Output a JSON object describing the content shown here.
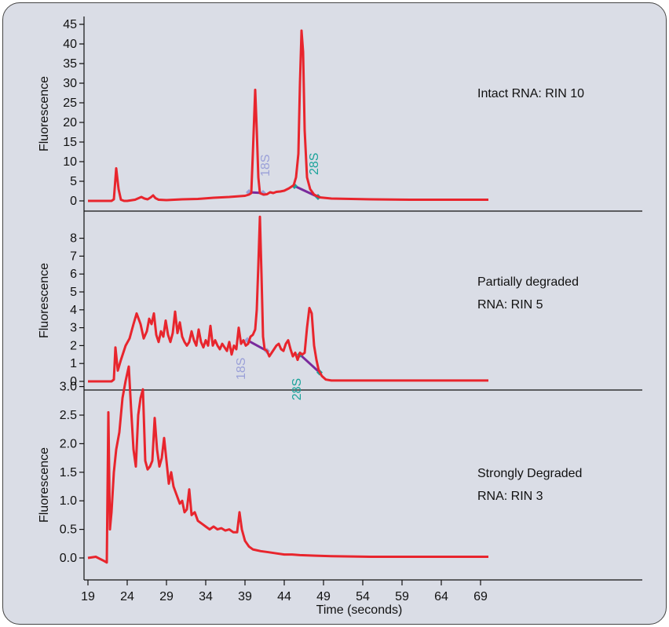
{
  "chart_data": [
    {
      "type": "line",
      "panel": "top",
      "annotation": [
        "Intact RNA: RIN 10"
      ],
      "ylabel": "Fluorescence",
      "xlim": [
        19,
        70
      ],
      "ylim": [
        0,
        45
      ],
      "yticks": [
        "0",
        "5",
        "10",
        "15",
        "20",
        "25",
        "30",
        "35",
        "40",
        "45"
      ],
      "series": [
        {
          "color": "#e8252d",
          "x": [
            19,
            20.5,
            21.5,
            22.0,
            22.3,
            22.6,
            22.9,
            23.2,
            23.6,
            24.0,
            25,
            25.8,
            26.2,
            26.6,
            27,
            27.3,
            27.6,
            28.0,
            29,
            31,
            33,
            35,
            37,
            39,
            39.5,
            39.8,
            40.0,
            40.3,
            40.5,
            40.7,
            40.9,
            41.1,
            41.4,
            41.8,
            42.2,
            42.6,
            43.0,
            43.5,
            44.0,
            44.6,
            45.2,
            45.5,
            45.8,
            46.0,
            46.2,
            46.4,
            46.6,
            46.9,
            47.3,
            47.8,
            48.5,
            50,
            55,
            60,
            65,
            70
          ],
          "values": [
            0,
            0,
            0,
            0,
            0.4,
            8.3,
            3.0,
            0.3,
            0,
            0,
            0.3,
            1.0,
            0.6,
            0.4,
            0.9,
            1.4,
            0.7,
            0.3,
            0.2,
            0.4,
            0.5,
            0.8,
            1.0,
            1.3,
            1.6,
            2.0,
            12.0,
            28.3,
            18.0,
            6.0,
            2.0,
            1.8,
            1.6,
            1.7,
            2.2,
            2.0,
            2.3,
            2.4,
            2.6,
            3.2,
            4.0,
            6.0,
            12.0,
            30.0,
            43.4,
            38.0,
            18.0,
            6.0,
            3.0,
            1.6,
            0.9,
            0.6,
            0.4,
            0.3,
            0.3,
            0.3
          ]
        }
      ],
      "baseline_18S": {
        "x": [
          39.5,
          41.3
        ],
        "values": [
          2.2,
          2.0
        ],
        "label": "18S"
      },
      "baseline_28S": {
        "x": [
          45.3,
          48.3
        ],
        "values": [
          3.8,
          1.0
        ],
        "label": "28S"
      }
    },
    {
      "type": "line",
      "panel": "middle",
      "annotation": [
        "Partially degraded",
        "RNA: RIN 5"
      ],
      "ylabel": "Fluorescence",
      "xlim": [
        19,
        70
      ],
      "ylim": [
        0,
        9
      ],
      "yticks": [
        "0",
        "1",
        "2",
        "3",
        "4",
        "5",
        "6",
        "7",
        "8"
      ],
      "series": [
        {
          "color": "#e8252d",
          "x": [
            19,
            20.5,
            21.5,
            22.0,
            22.3,
            22.5,
            22.8,
            23.2,
            23.8,
            24.3,
            24.8,
            25.2,
            25.7,
            26.1,
            26.5,
            26.8,
            27.1,
            27.4,
            27.7,
            28.0,
            28.3,
            28.6,
            28.9,
            29.2,
            29.5,
            29.8,
            30.1,
            30.4,
            30.7,
            31.0,
            31.3,
            31.6,
            31.9,
            32.2,
            32.5,
            32.8,
            33.1,
            33.4,
            33.7,
            34.0,
            34.3,
            34.6,
            34.9,
            35.2,
            35.5,
            35.8,
            36.1,
            36.4,
            36.7,
            37.0,
            37.3,
            37.6,
            37.9,
            38.2,
            38.5,
            38.8,
            39.1,
            39.4,
            39.7,
            40.0,
            40.3,
            40.5,
            40.7,
            40.9,
            41.1,
            41.3,
            41.5,
            41.8,
            42.1,
            42.4,
            42.7,
            43.0,
            43.3,
            43.6,
            43.9,
            44.2,
            44.5,
            44.8,
            45.1,
            45.4,
            45.7,
            46.0,
            46.3,
            46.6,
            46.9,
            47.2,
            47.5,
            47.8,
            48.1,
            48.4,
            48.8,
            49.3,
            50,
            52,
            55,
            60,
            65,
            70
          ],
          "values": [
            0,
            0,
            0,
            0,
            0.1,
            1.9,
            0.6,
            1.2,
            2.0,
            2.4,
            3.2,
            3.8,
            3.2,
            2.4,
            2.8,
            3.5,
            3.2,
            3.8,
            2.6,
            2.2,
            2.8,
            2.5,
            3.4,
            2.6,
            2.2,
            2.7,
            3.9,
            2.7,
            3.3,
            2.5,
            2.2,
            2.0,
            2.2,
            2.8,
            2.3,
            2.0,
            2.9,
            2.2,
            1.9,
            2.3,
            2.0,
            3.1,
            2.0,
            2.3,
            2.0,
            1.8,
            2.1,
            1.9,
            1.7,
            2.2,
            1.5,
            2.0,
            1.8,
            3.0,
            2.1,
            2.3,
            2.0,
            2.1,
            2.5,
            2.6,
            2.9,
            4.0,
            6.5,
            9.2,
            6.0,
            2.5,
            1.8,
            1.7,
            1.4,
            1.6,
            1.8,
            2.0,
            2.1,
            1.8,
            1.7,
            2.1,
            2.3,
            1.8,
            1.4,
            1.6,
            1.2,
            1.6,
            1.5,
            1.6,
            3.0,
            4.1,
            3.8,
            2.0,
            1.2,
            0.6,
            0.3,
            0.1,
            0.05,
            0.05,
            0.05,
            0.05,
            0.05,
            0.05
          ]
        }
      ],
      "baseline_18S": {
        "x": [
          39.3,
          41.8
        ],
        "values": [
          2.3,
          1.7
        ],
        "label": "18S"
      },
      "baseline_28S": {
        "x": [
          46.0,
          48.5
        ],
        "values": [
          1.5,
          0.5
        ],
        "label": "28S"
      }
    },
    {
      "type": "line",
      "panel": "bottom",
      "annotation": [
        "Strongly Degraded",
        "RNA: RIN 3"
      ],
      "ylabel": "Fluorescence",
      "xlabel": "Time (seconds)",
      "xlim": [
        19,
        70
      ],
      "ylim": [
        0,
        3.4
      ],
      "yticks": [
        "0.0",
        "0.5",
        "1.0",
        "1.5",
        "2.0",
        "2.5",
        "3.0"
      ],
      "xticks": [
        "19",
        "24",
        "29",
        "34",
        "39",
        "44",
        "49",
        "54",
        "59",
        "64",
        "69"
      ],
      "series": [
        {
          "color": "#e8252d",
          "x": [
            19,
            20,
            21.0,
            21.4,
            21.6,
            21.8,
            22.0,
            22.3,
            22.6,
            23.0,
            23.4,
            23.8,
            24.2,
            24.5,
            24.8,
            25.1,
            25.4,
            25.7,
            26.0,
            26.3,
            26.6,
            26.9,
            27.2,
            27.5,
            27.8,
            28.1,
            28.4,
            28.7,
            29.0,
            29.3,
            29.6,
            29.9,
            30.3,
            30.7,
            31.0,
            31.3,
            31.6,
            31.9,
            32.2,
            32.6,
            33.0,
            33.5,
            34.0,
            34.5,
            35.0,
            35.5,
            36.0,
            36.5,
            37.0,
            37.5,
            38.0,
            38.3,
            38.6,
            39.0,
            39.5,
            40,
            41,
            42,
            43,
            44,
            45,
            46,
            48,
            50,
            55,
            60,
            65,
            70
          ],
          "values": [
            0,
            0.02,
            -0.05,
            -0.08,
            2.55,
            0.5,
            0.8,
            1.5,
            1.9,
            2.2,
            2.8,
            3.1,
            3.35,
            2.6,
            1.9,
            1.6,
            2.5,
            2.8,
            2.95,
            1.7,
            1.55,
            1.6,
            1.7,
            2.45,
            1.9,
            1.6,
            1.75,
            2.1,
            1.7,
            1.3,
            1.5,
            1.25,
            1.1,
            0.95,
            1.0,
            0.8,
            0.85,
            1.2,
            0.75,
            0.8,
            0.65,
            0.6,
            0.55,
            0.5,
            0.55,
            0.5,
            0.52,
            0.48,
            0.5,
            0.45,
            0.45,
            0.8,
            0.5,
            0.3,
            0.2,
            0.15,
            0.12,
            0.1,
            0.08,
            0.06,
            0.06,
            0.05,
            0.04,
            0.03,
            0.02,
            0.02,
            0.02,
            0.02
          ]
        }
      ]
    }
  ]
}
